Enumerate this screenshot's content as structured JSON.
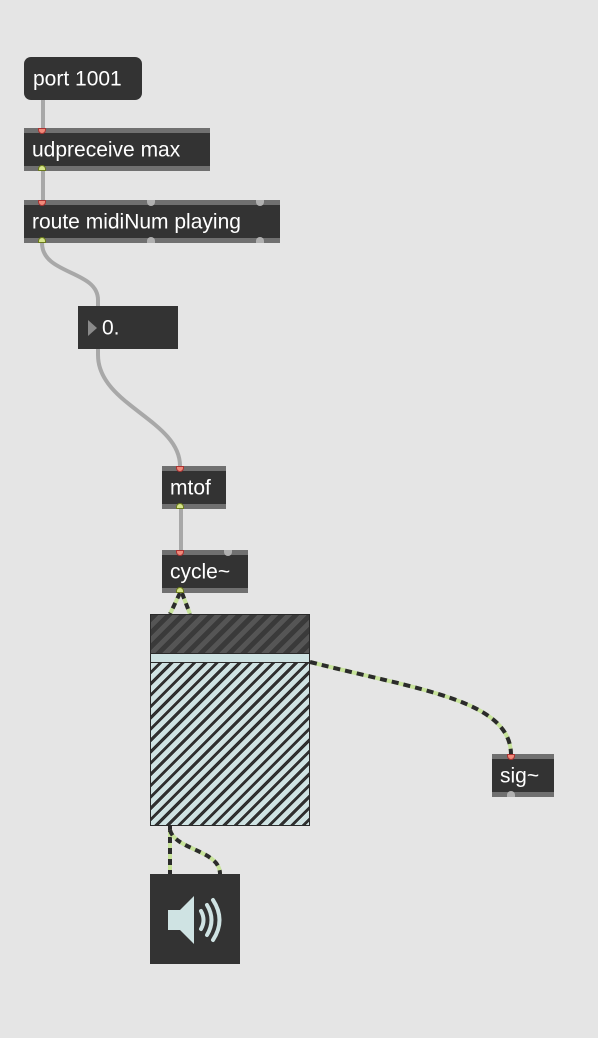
{
  "patch": {
    "message_port": "port 1001",
    "udpreceive": "udpreceive max",
    "route": "route midiNum playing",
    "number_value": "0.",
    "mtof": "mtof",
    "cycle": "cycle~",
    "sig": "sig~"
  },
  "icons": {
    "speaker": "speaker-icon",
    "number_triangle": "triangle-icon"
  },
  "colors": {
    "canvas": "#e5e5e5",
    "object": "#333333",
    "signal_cord": "#c7e39a",
    "message_cord": "#a8a8a8",
    "scope_fill": "#cfe3e3"
  }
}
